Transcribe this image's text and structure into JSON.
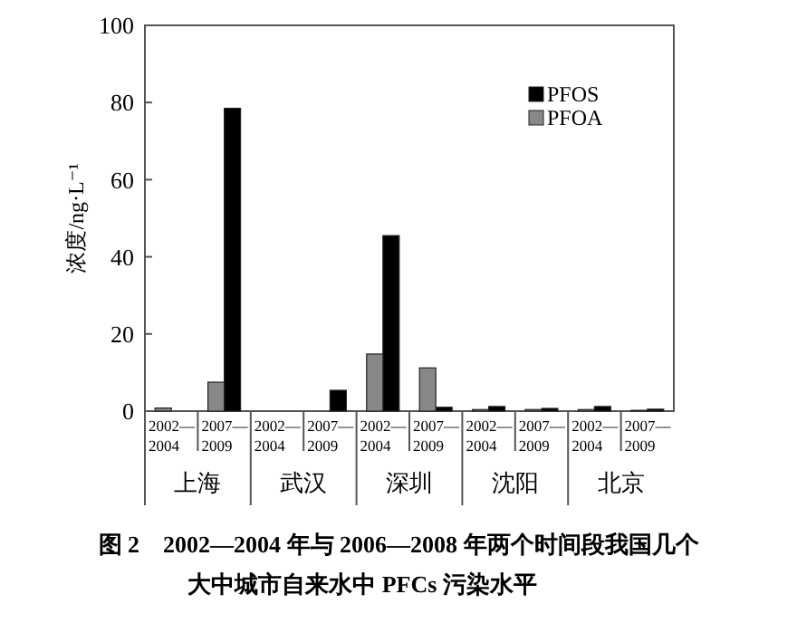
{
  "chart_data": {
    "type": "bar",
    "ylabel": "浓度/ng·L⁻¹",
    "categories": [
      "2002—2004",
      "2007—2009",
      "2002—2004",
      "2007—2009",
      "2002—2004",
      "2007—2009",
      "2002—2004",
      "2007—2009",
      "2002—2004",
      "2007—2009"
    ],
    "series": [
      {
        "name": "PFOS",
        "color": "#000000",
        "values": [
          null,
          78.5,
          null,
          5.4,
          45.5,
          1.0,
          1.2,
          0.7,
          1.2,
          0.5
        ]
      },
      {
        "name": "PFOA",
        "color": "#888888",
        "values": [
          0.8,
          7.5,
          null,
          null,
          14.8,
          11.2,
          0.4,
          0.4,
          0.4,
          0.2
        ]
      }
    ],
    "ylim": [
      0,
      100
    ],
    "yticks": [
      0,
      20,
      40,
      60,
      80,
      100
    ],
    "legend": "top right",
    "annotations": [
      "上海",
      "武汉",
      "深圳",
      "沈阳",
      "北京",
      "图 2　2002—2004 年与 2006—2008 年两个时间段我国几个大中城市自来水中 PFCs 污染水平"
    ]
  }
}
